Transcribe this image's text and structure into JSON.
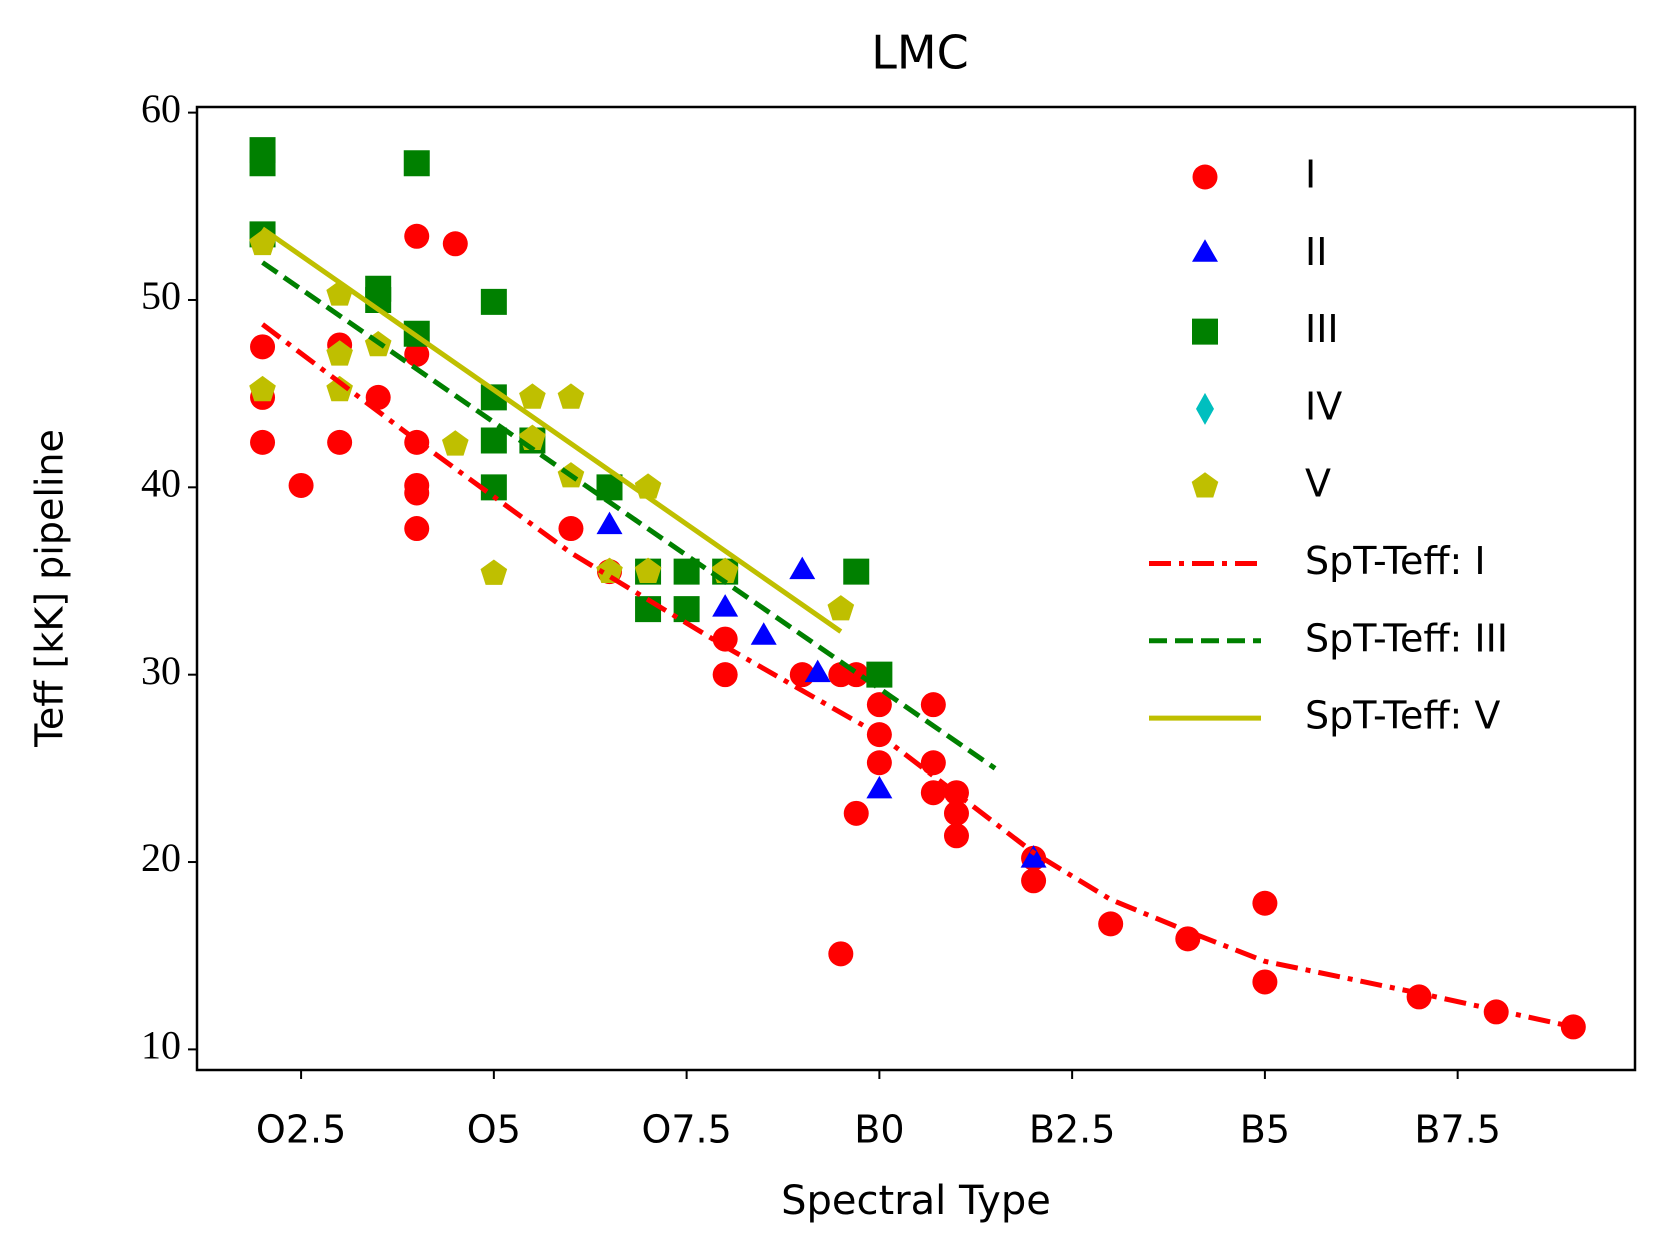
{
  "chart_data": {
    "type": "scatter",
    "title": "LMC",
    "xlabel": "Spectral Type",
    "ylabel": "Teff [kK] pipeline",
    "xlim": [
      1.15,
      19.8
    ],
    "ylim": [
      8.9,
      60.3
    ],
    "xticks": [
      {
        "value": 2.5,
        "label": "O2.5"
      },
      {
        "value": 5,
        "label": "O5"
      },
      {
        "value": 7.5,
        "label": "O7.5"
      },
      {
        "value": 10,
        "label": "B0"
      },
      {
        "value": 12.5,
        "label": "B2.5"
      },
      {
        "value": 15,
        "label": "B5"
      },
      {
        "value": 17.5,
        "label": "B7.5"
      }
    ],
    "yticks": [
      10,
      20,
      30,
      40,
      50,
      60
    ],
    "legend": "upper right",
    "series": [
      {
        "name": "I",
        "color": "#ff0000",
        "marker": "circle",
        "x": [
          2,
          2,
          2,
          2.5,
          3,
          3,
          3.5,
          4,
          4,
          4,
          4,
          4,
          4,
          4.5,
          6,
          6.5,
          8,
          8,
          9,
          9.5,
          9.7,
          9.5,
          9.7,
          10,
          10,
          10,
          10.7,
          10.7,
          10.7,
          11,
          11,
          11,
          12,
          12,
          13,
          14,
          15,
          15,
          17,
          18,
          19
        ],
        "values": [
          47.5,
          44.8,
          42.4,
          40.1,
          47.6,
          42.4,
          44.8,
          53.4,
          47.1,
          42.4,
          40.1,
          39.7,
          37.8,
          53,
          37.8,
          35.5,
          31.9,
          30,
          30,
          30,
          30,
          15.1,
          22.6,
          28.4,
          26.8,
          25.3,
          28.4,
          25.3,
          23.7,
          23.7,
          22.6,
          21.4,
          20.2,
          19,
          16.7,
          15.9,
          17.8,
          13.6,
          12.8,
          12,
          11.2
        ]
      },
      {
        "name": "II",
        "color": "#0000ff",
        "marker": "triangle",
        "x": [
          6.5,
          8,
          8.5,
          9,
          9.2,
          10,
          12
        ],
        "values": [
          37.9,
          33.5,
          32,
          35.5,
          30,
          23.8,
          20.1
        ]
      },
      {
        "name": "III",
        "color": "#008000",
        "marker": "square",
        "x": [
          2,
          2,
          2,
          3.5,
          3.5,
          4,
          4,
          5,
          5,
          5,
          5,
          5.5,
          6.5,
          7,
          7,
          7.5,
          7.5,
          8,
          9.7,
          10
        ],
        "values": [
          58,
          57.3,
          53.5,
          50.6,
          50,
          57.3,
          48.2,
          49.9,
          44.8,
          42.5,
          40,
          42.5,
          40,
          35.5,
          33.5,
          35.5,
          33.5,
          35.5,
          35.5,
          30
        ]
      },
      {
        "name": "IV",
        "color": "#00bfbf",
        "marker": "diamond",
        "x": [],
        "values": []
      },
      {
        "name": "V",
        "color": "#bfbf00",
        "marker": "pentagon",
        "x": [
          2,
          2,
          3,
          3,
          3,
          3.5,
          4.5,
          5,
          5.5,
          5.5,
          6,
          6,
          6.5,
          7,
          7,
          8,
          9.5
        ],
        "values": [
          53,
          45.2,
          50.3,
          47.1,
          45.2,
          47.6,
          42.3,
          35.4,
          44.8,
          42.6,
          44.8,
          40.6,
          35.5,
          40,
          35.5,
          35.5,
          33.5
        ]
      },
      {
        "name": "SpT-Teff: I",
        "color": "#ff0000",
        "linestyle": "dashdot",
        "x": [
          2,
          4,
          6,
          8,
          10,
          12,
          13,
          14,
          15,
          17,
          19
        ],
        "values": [
          48.7,
          42.5,
          36.5,
          31.5,
          26.8,
          20.5,
          18,
          16.3,
          14.7,
          13,
          11.2
        ]
      },
      {
        "name": "SpT-Teff: III",
        "color": "#008000",
        "linestyle": "dashed",
        "x": [
          2,
          11.5
        ],
        "values": [
          52,
          25
        ]
      },
      {
        "name": "SpT-Teff: V",
        "color": "#bfbf00",
        "linestyle": "solid",
        "x": [
          2,
          9.5
        ],
        "values": [
          53.8,
          32.3
        ]
      }
    ]
  }
}
